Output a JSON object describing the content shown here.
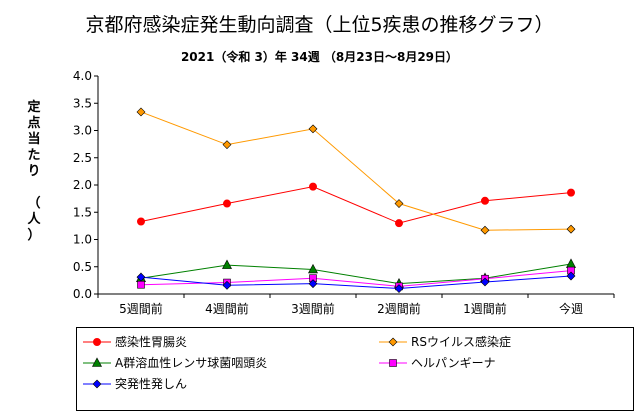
{
  "title": "京都府感染症発生動向調査（上位5疾患の推移グラフ）",
  "subtitle": "2021（令和 3）年  34週  （8月23日～8月29日）",
  "chart_data": {
    "type": "line",
    "title": "京都府感染症発生動向調査（上位5疾患の推移グラフ）",
    "subtitle": "2021（令和 3）年  34週  （8月23日～8月29日）",
    "ylabel": "定点当たり　（人）",
    "ylabel_chars": [
      "定",
      "点",
      "当",
      "た",
      "り",
      "",
      "（",
      "人",
      "）"
    ],
    "xlabel": "",
    "categories": [
      "5週間前",
      "4週間前",
      "3週間前",
      "2週間前",
      "1週間前",
      "今週"
    ],
    "ylim": [
      0,
      4.0
    ],
    "yticks": [
      "0.0",
      "0.5",
      "1.0",
      "1.5",
      "2.0",
      "2.5",
      "3.0",
      "3.5",
      "4.0"
    ],
    "grid": false,
    "legend_position": "bottom",
    "series": [
      {
        "name": "感染性胃腸炎",
        "color": "#ff0000",
        "marker": "circle",
        "values": [
          1.33,
          1.66,
          1.97,
          1.3,
          1.71,
          1.86
        ]
      },
      {
        "name": "RSウイルス感染症",
        "color": "#ff9900",
        "marker": "diamond",
        "values": [
          3.34,
          2.74,
          3.03,
          1.66,
          1.17,
          1.19
        ]
      },
      {
        "name": "A群溶血性レンサ球菌咽頭炎",
        "color": "#008000",
        "marker": "triangle",
        "values": [
          0.29,
          0.53,
          0.45,
          0.19,
          0.29,
          0.55
        ]
      },
      {
        "name": "ヘルパンギーナ",
        "color": "#ff00ff",
        "marker": "square",
        "values": [
          0.17,
          0.21,
          0.29,
          0.14,
          0.28,
          0.43
        ]
      },
      {
        "name": "突発性発しん",
        "color": "#0000ff",
        "marker": "diamond",
        "values": [
          0.31,
          0.16,
          0.19,
          0.1,
          0.22,
          0.33
        ]
      }
    ]
  }
}
